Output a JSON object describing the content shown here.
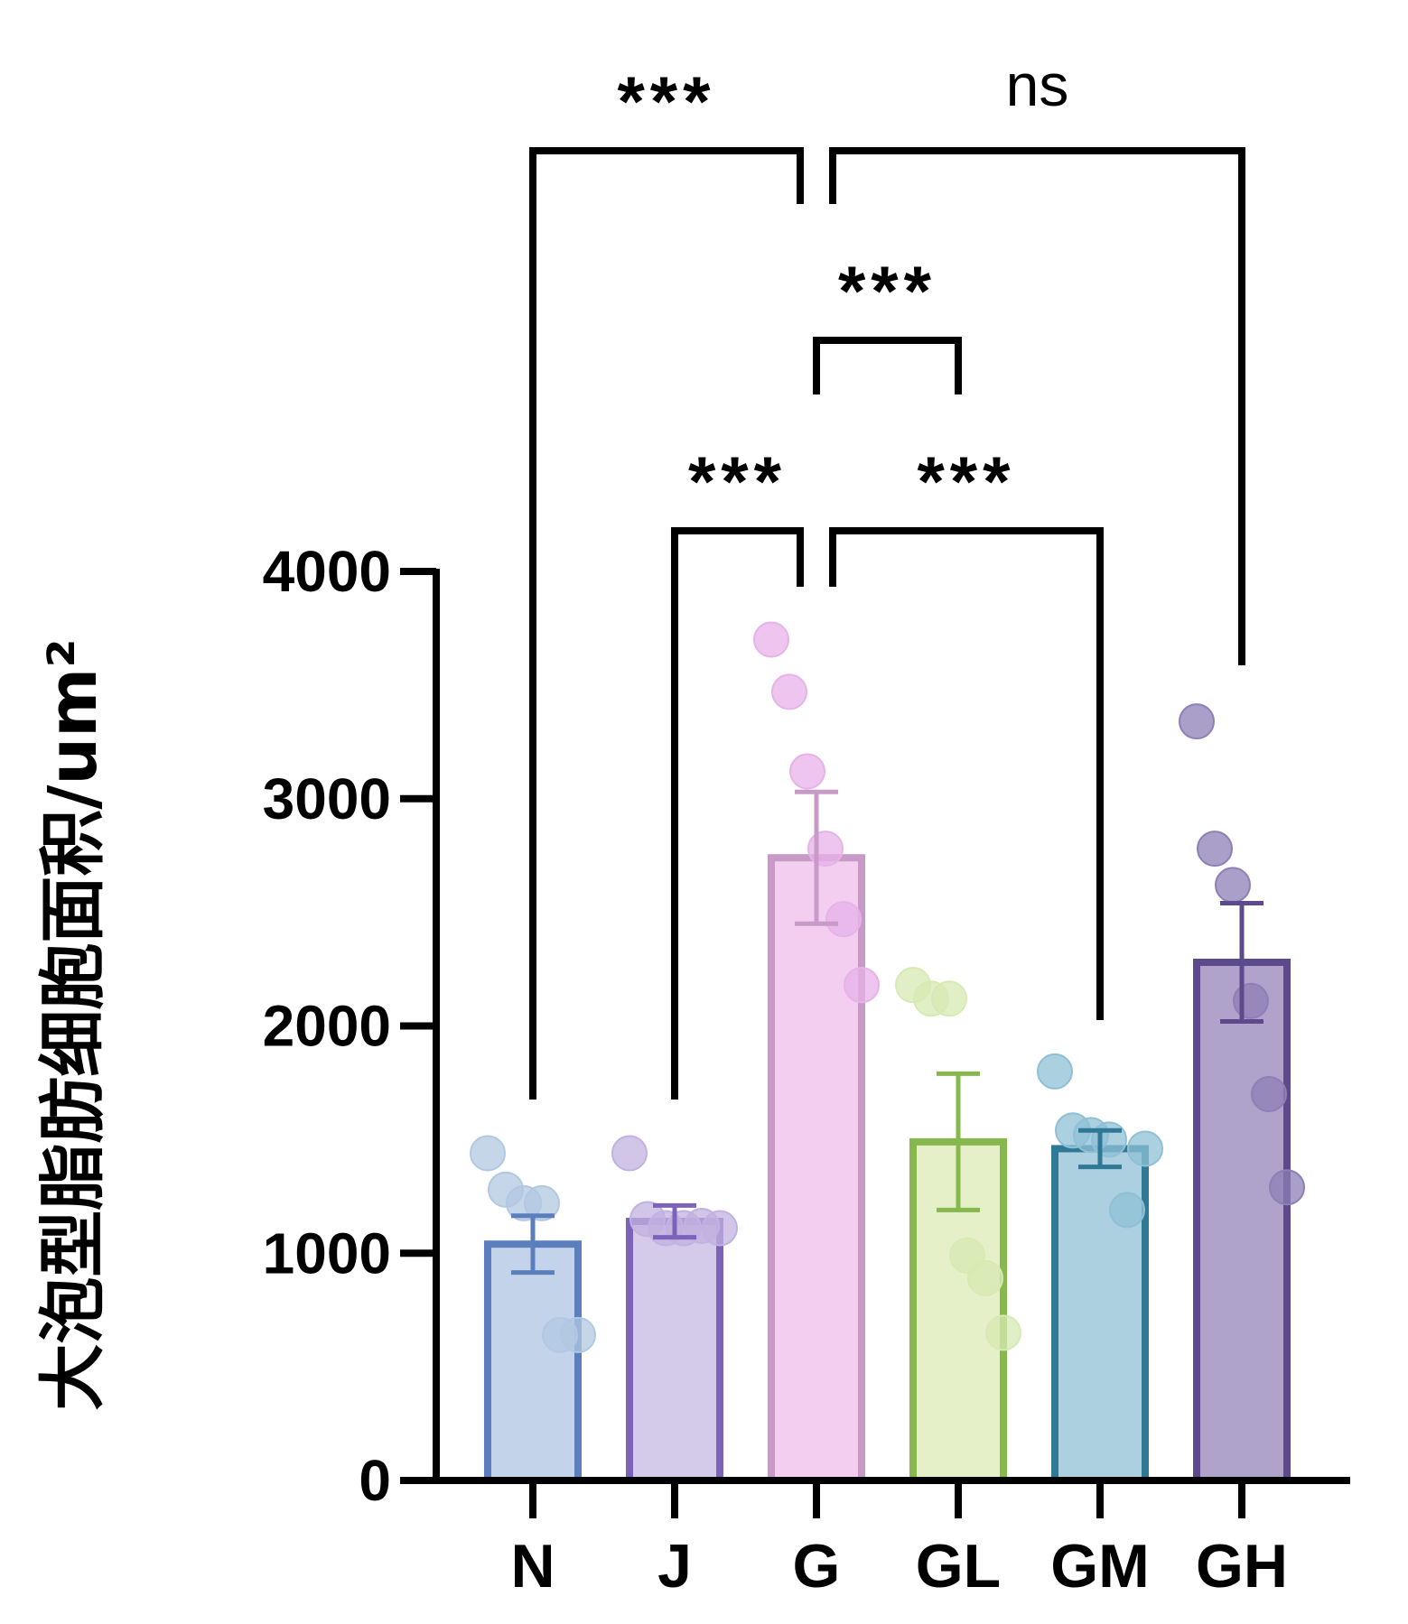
{
  "chart_data": {
    "type": "bar",
    "title": "",
    "xlabel": "",
    "ylabel": "大泡型脂肪细胞面积/um²",
    "ylim": [
      0,
      4000
    ],
    "yticks": [
      0,
      1000,
      2000,
      3000,
      4000
    ],
    "ytick_labels": [
      "0",
      "1000",
      "2000",
      "3000",
      "4000"
    ],
    "categories": [
      "N",
      "J",
      "G",
      "GL",
      "GM",
      "GH"
    ],
    "values": [
      1040,
      1140,
      2740,
      1490,
      1460,
      2280
    ],
    "error": [
      125,
      70,
      290,
      300,
      80,
      260
    ],
    "points": [
      [
        1440,
        1280,
        1220,
        1220,
        640,
        640
      ],
      [
        1440,
        1150,
        1110,
        1110,
        1120,
        1110
      ],
      [
        3700,
        3470,
        3120,
        2780,
        2470,
        2180
      ],
      [
        2180,
        2120,
        2120,
        990,
        890,
        650
      ],
      [
        1800,
        1540,
        1520,
        1500,
        1190,
        1460
      ],
      [
        3340,
        2780,
        2620,
        2110,
        1700,
        1290
      ]
    ],
    "colors": {
      "edge": [
        "#5b7fbd",
        "#7a63b8",
        "#c89ac8",
        "#86b84e",
        "#2f7896",
        "#5d4a8c"
      ],
      "fill": [
        "#b9cde6",
        "#cdc2e6",
        "#f2c6ee",
        "#e1edbe",
        "#9ec8da",
        "#a193c3"
      ],
      "dot": [
        "#b2c8e2",
        "#c2b2e0",
        "#e7b2e8",
        "#d7eab3",
        "#8fc0d6",
        "#8e7fb5"
      ]
    },
    "significance": [
      {
        "from": "N",
        "to": "G",
        "label": "***"
      },
      {
        "from": "G",
        "to": "GH",
        "label": "ns"
      },
      {
        "from": "G",
        "to": "GL",
        "label": "***"
      },
      {
        "from": "J",
        "to": "G",
        "label": "***"
      },
      {
        "from": "G",
        "to": "GM",
        "label": "***"
      }
    ]
  }
}
